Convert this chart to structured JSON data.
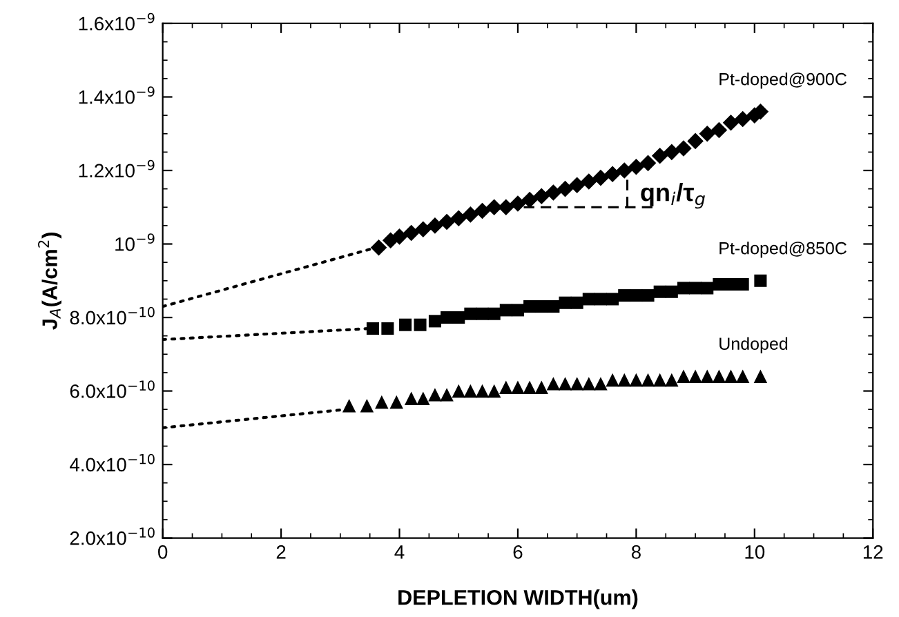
{
  "chart_data": {
    "type": "scatter",
    "xlabel": "DEPLETION WIDTH(um)",
    "ylabel": "J$_{A}$(A/cm$^{2}$)",
    "xlim": [
      0,
      12
    ],
    "xticks": [
      0,
      2,
      4,
      6,
      8,
      10,
      12
    ],
    "ylim": [
      2e-10,
      1.6e-09
    ],
    "yticks": [
      {
        "value": 2e-10,
        "label": "2.0x10$^{−10}$"
      },
      {
        "value": 4e-10,
        "label": "4.0x10$^{−10}$"
      },
      {
        "value": 6e-10,
        "label": "6.0x10$^{−10}$"
      },
      {
        "value": 8e-10,
        "label": "8.0x10$^{−10}$"
      },
      {
        "value": 1e-09,
        "label": "10$^{−9}$"
      },
      {
        "value": 1.2e-09,
        "label": "1.2x10$^{−9}$"
      },
      {
        "value": 1.4e-09,
        "label": "1.4x10$^{−9}$"
      },
      {
        "value": 1.6e-09,
        "label": "1.6x10$^{−9}$"
      }
    ],
    "grid": false,
    "legend": "right",
    "series": [
      {
        "name": "Pt-doped@900C",
        "color": "#000000",
        "marker": "diamond",
        "x": [
          3.65,
          3.85,
          4.0,
          4.2,
          4.4,
          4.6,
          4.8,
          5.0,
          5.2,
          5.4,
          5.6,
          5.8,
          6.0,
          6.2,
          6.4,
          6.6,
          6.8,
          7.0,
          7.2,
          7.4,
          7.6,
          7.8,
          8.0,
          8.2,
          8.4,
          8.6,
          8.8,
          9.0,
          9.2,
          9.4,
          9.6,
          9.8,
          10.0,
          10.1
        ],
        "values": [
          9.9e-10,
          1.01e-09,
          1.02e-09,
          1.03e-09,
          1.04e-09,
          1.05e-09,
          1.06e-09,
          1.07e-09,
          1.08e-09,
          1.09e-09,
          1.1e-09,
          1.1e-09,
          1.11e-09,
          1.12e-09,
          1.13e-09,
          1.14e-09,
          1.15e-09,
          1.16e-09,
          1.17e-09,
          1.18e-09,
          1.19e-09,
          1.2e-09,
          1.21e-09,
          1.22e-09,
          1.24e-09,
          1.25e-09,
          1.26e-09,
          1.28e-09,
          1.3e-09,
          1.31e-09,
          1.33e-09,
          1.34e-09,
          1.35e-09,
          1.36e-09
        ]
      },
      {
        "name": "Pt-doped@850C",
        "color": "#000000",
        "marker": "square",
        "x": [
          3.55,
          3.8,
          4.1,
          4.35,
          4.6,
          4.8,
          5.0,
          5.2,
          5.4,
          5.6,
          5.8,
          6.0,
          6.2,
          6.4,
          6.6,
          6.8,
          7.0,
          7.2,
          7.4,
          7.6,
          7.8,
          8.0,
          8.2,
          8.4,
          8.6,
          8.8,
          9.0,
          9.2,
          9.4,
          9.6,
          9.8,
          10.1
        ],
        "values": [
          7.7e-10,
          7.7e-10,
          7.8e-10,
          7.8e-10,
          7.9e-10,
          8e-10,
          8e-10,
          8.1e-10,
          8.1e-10,
          8.1e-10,
          8.2e-10,
          8.2e-10,
          8.3e-10,
          8.3e-10,
          8.3e-10,
          8.4e-10,
          8.4e-10,
          8.5e-10,
          8.5e-10,
          8.5e-10,
          8.6e-10,
          8.6e-10,
          8.6e-10,
          8.7e-10,
          8.7e-10,
          8.8e-10,
          8.8e-10,
          8.8e-10,
          8.9e-10,
          8.9e-10,
          8.9e-10,
          9e-10
        ]
      },
      {
        "name": "Undoped",
        "color": "#000000",
        "marker": "triangle",
        "x": [
          3.15,
          3.45,
          3.7,
          3.95,
          4.2,
          4.4,
          4.6,
          4.8,
          5.0,
          5.2,
          5.4,
          5.6,
          5.8,
          6.0,
          6.2,
          6.4,
          6.6,
          6.8,
          7.0,
          7.2,
          7.4,
          7.6,
          7.8,
          8.0,
          8.2,
          8.4,
          8.6,
          8.8,
          9.0,
          9.2,
          9.4,
          9.6,
          9.8,
          10.1
        ],
        "values": [
          5.6e-10,
          5.6e-10,
          5.7e-10,
          5.7e-10,
          5.8e-10,
          5.8e-10,
          5.9e-10,
          5.9e-10,
          6e-10,
          6e-10,
          6e-10,
          6e-10,
          6.1e-10,
          6.1e-10,
          6.1e-10,
          6.1e-10,
          6.2e-10,
          6.2e-10,
          6.2e-10,
          6.2e-10,
          6.2e-10,
          6.3e-10,
          6.3e-10,
          6.3e-10,
          6.3e-10,
          6.3e-10,
          6.3e-10,
          6.4e-10,
          6.4e-10,
          6.4e-10,
          6.4e-10,
          6.4e-10,
          6.4e-10,
          6.4e-10
        ]
      },
      {
        "type": "line",
        "line_style": "dotted",
        "color": "#000000",
        "x": [
          0,
          3.6
        ],
        "values": [
          8.3e-10,
          9.9e-10
        ]
      },
      {
        "type": "line",
        "line_style": "dotted",
        "color": "#000000",
        "x": [
          0,
          3.5
        ],
        "values": [
          7.4e-10,
          7.7e-10
        ]
      },
      {
        "type": "line",
        "line_style": "dotted",
        "color": "#000000",
        "x": [
          0,
          3.1
        ],
        "values": [
          5e-10,
          5.5e-10
        ]
      },
      {
        "type": "line",
        "line_style": "dashed",
        "color": "#000000",
        "x": [
          6.1,
          8.3
        ],
        "values": [
          1.1e-09,
          1.1e-09
        ]
      },
      {
        "type": "line",
        "line_style": "dashed",
        "color": "#000000",
        "x": [
          7.85,
          7.85
        ],
        "values": [
          1.1e-09,
          1.18e-09
        ]
      }
    ],
    "annotations": [
      "qn$_{i}$/τ$_{g}$"
    ]
  }
}
